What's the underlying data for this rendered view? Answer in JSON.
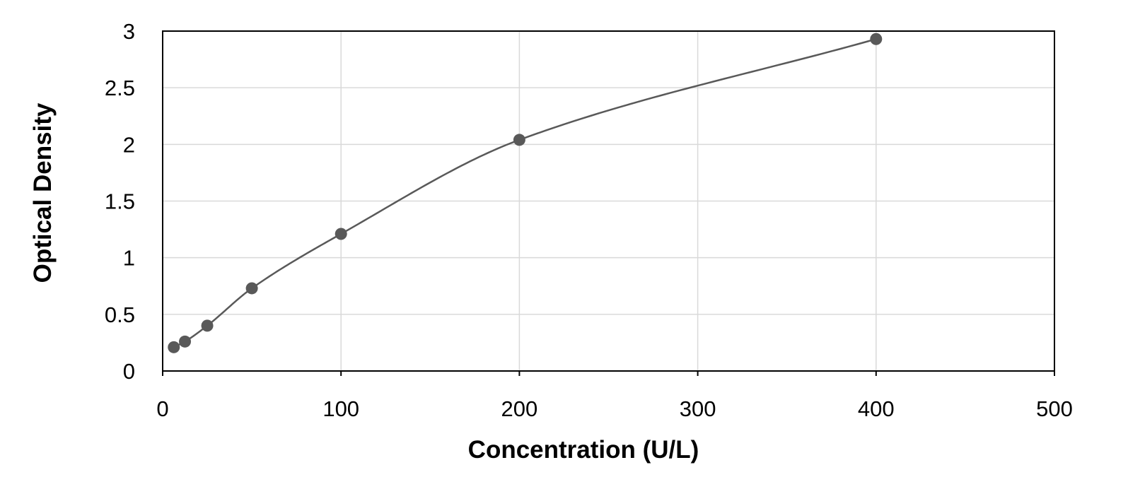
{
  "chart_data": {
    "type": "scatter",
    "title": "",
    "xlabel": "Concentration (U/L)",
    "ylabel": "Optical Density",
    "xlim": [
      0,
      500
    ],
    "ylim": [
      0,
      3
    ],
    "x_ticks": [
      0,
      100,
      200,
      300,
      400,
      500
    ],
    "y_ticks": [
      0,
      0.5,
      1,
      1.5,
      2,
      2.5,
      3
    ],
    "x_tick_labels": [
      "0",
      "100",
      "200",
      "300",
      "400",
      "500"
    ],
    "y_tick_labels": [
      "0",
      "0.5",
      "1",
      "1.5",
      "2",
      "2.5",
      "3"
    ],
    "grid": true,
    "legend": "none",
    "series": [
      {
        "points": [
          {
            "x": 6.25,
            "y": 0.21
          },
          {
            "x": 12.5,
            "y": 0.26
          },
          {
            "x": 25,
            "y": 0.4
          },
          {
            "x": 50,
            "y": 0.73
          },
          {
            "x": 100,
            "y": 1.21
          },
          {
            "x": 200,
            "y": 2.04
          },
          {
            "x": 400,
            "y": 2.93
          }
        ],
        "fit_curve": "smooth",
        "marker_color": "#595959",
        "line_color": "#595959"
      }
    ],
    "colors": {
      "grid": "#d9d9d9",
      "frame": "#000000",
      "text": "#000000"
    }
  }
}
